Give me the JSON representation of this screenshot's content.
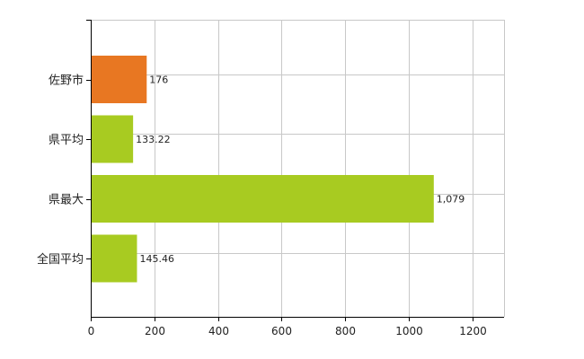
{
  "chart_data": {
    "type": "bar",
    "orientation": "horizontal",
    "categories": [
      "佐野市",
      "県平均",
      "県最大",
      "全国平均"
    ],
    "values": [
      176,
      133.22,
      1079,
      145.46
    ],
    "value_labels": [
      "176",
      "133.22",
      "1,079",
      "145.46"
    ],
    "colors": [
      "#E87722",
      "#A8CB21",
      "#A8CB21",
      "#A8CB21"
    ],
    "xlim": [
      0,
      1300
    ],
    "xticks": [
      0,
      200,
      400,
      600,
      800,
      1000,
      1200
    ],
    "grid": true,
    "gridline_color": "#C8C8C8"
  }
}
